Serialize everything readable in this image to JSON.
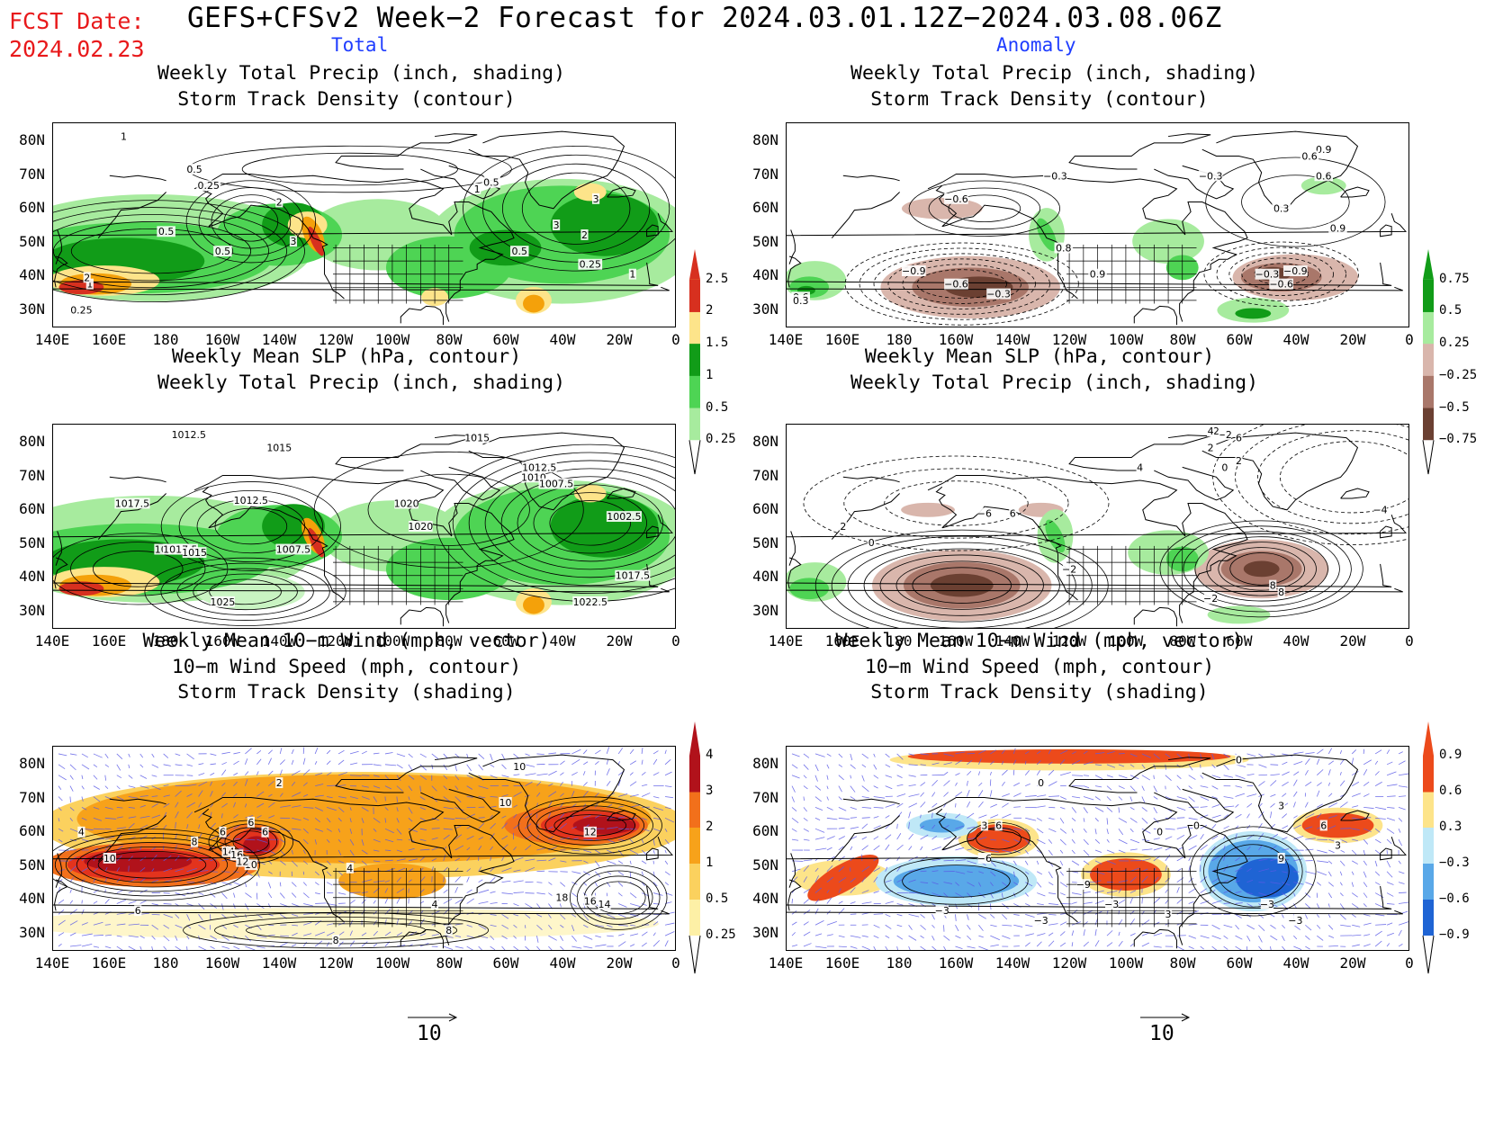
{
  "header": {
    "fcst_label": "FCST Date:",
    "fcst_date": "2024.02.23",
    "title": "GEFS+CFSv2 Week−2 Forecast for 2024.03.01.12Z−2024.03.08.06Z",
    "col_total": "Total",
    "col_anomaly": "Anomaly"
  },
  "axes": {
    "lat_labels": [
      "80N",
      "70N",
      "60N",
      "50N",
      "40N",
      "30N"
    ],
    "lon_labels": [
      "140E",
      "160E",
      "180",
      "160W",
      "140W",
      "120W",
      "100W",
      "80W",
      "60W",
      "40W",
      "20W",
      "0"
    ]
  },
  "panels": {
    "row1": {
      "line1": "Weekly Total Precip (inch, shading)",
      "line2": "Storm Track Density (contour)"
    },
    "row2": {
      "line1": "Weekly Mean SLP (hPa, contour)",
      "line2": "Weekly Total Precip (inch, shading)"
    },
    "row3": {
      "line1": "Weekly Mean 10−m Wind (mph, vector)",
      "line2": "10−m Wind Speed (mph, contour)",
      "line3": "Storm Track Density (shading)"
    }
  },
  "colorbars": {
    "precip_total": {
      "labels": [
        "2.5",
        "2",
        "1.5",
        "1",
        "0.5",
        "0.25"
      ],
      "colors": [
        "#d7301f",
        "#f4a10a",
        "#fde48a",
        "#119c18",
        "#4ed454",
        "#a7eb9e"
      ]
    },
    "precip_anom": {
      "labels": [
        "0.75",
        "0.5",
        "0.25",
        "−0.25",
        "−0.5",
        "−0.75"
      ],
      "colors": [
        "#119c18",
        "#4ed454",
        "#a7eb9e",
        "#d9b6ac",
        "#a9776a",
        "#6b4032"
      ]
    },
    "storm_total": {
      "labels": [
        "4",
        "3",
        "2",
        "1",
        "0.5",
        "0.25"
      ],
      "colors": [
        "#b1121b",
        "#e3331d",
        "#f2701b",
        "#f7a21a",
        "#fbd15e",
        "#fdf0a6"
      ]
    },
    "storm_anom": {
      "labels": [
        "0.9",
        "0.6",
        "0.3",
        "−0.3",
        "−0.6",
        "−0.9"
      ],
      "colors": [
        "#ec4a1b",
        "#f7a21a",
        "#fde48a",
        "#bfe8f7",
        "#59a8e8",
        "#1f64d4"
      ]
    }
  },
  "vector_ref": {
    "value": "10"
  },
  "contour_labels": {
    "p1": [
      "1",
      "0.5",
      "0.25",
      "0.5",
      "2",
      "3",
      "0.5",
      "0.25",
      "1",
      "0.5",
      "0.5",
      "3",
      "2",
      "3",
      "1",
      "0.25",
      "1",
      "2"
    ],
    "p2": [
      "−0.9",
      "−0.6",
      "−0.3",
      "−0.3",
      "−0.3",
      "−0.9",
      "−0.6",
      "−0.3",
      "0.6",
      "0.3",
      "0.8",
      "0.9",
      "−0.6",
      "0.9",
      "0.3",
      "0.6",
      "0.9",
      "0.6"
    ],
    "p3": [
      "1012.5",
      "1015",
      "1015",
      "1012.5",
      "1010",
      "1007.5",
      "1020",
      "1017.5",
      "1012.5",
      "1017.5",
      "1020",
      "1002.5",
      "1012.5",
      "1015",
      "1007.5",
      "1025",
      "1017.5",
      "1022.5"
    ],
    "p4": [
      "6",
      "4",
      "2",
      "−2",
      "−4",
      "−6",
      "2",
      "0",
      "−2",
      "2",
      "−2",
      "8",
      "8",
      "6",
      "0",
      "2",
      "4"
    ],
    "p5": [
      "2",
      "4",
      "6",
      "8",
      "10",
      "14",
      "16",
      "10",
      "12",
      "6",
      "4",
      "8",
      "6",
      "10",
      "18",
      "16",
      "14",
      "12",
      "10",
      "4",
      "6",
      "8"
    ],
    "p6": [
      "0",
      "0",
      "6",
      "3",
      "6",
      "−6",
      "−3",
      "−9",
      "−3",
      "9",
      "3",
      "−3",
      "0",
      "3",
      "3",
      "−3",
      "−3",
      "0"
    ]
  }
}
